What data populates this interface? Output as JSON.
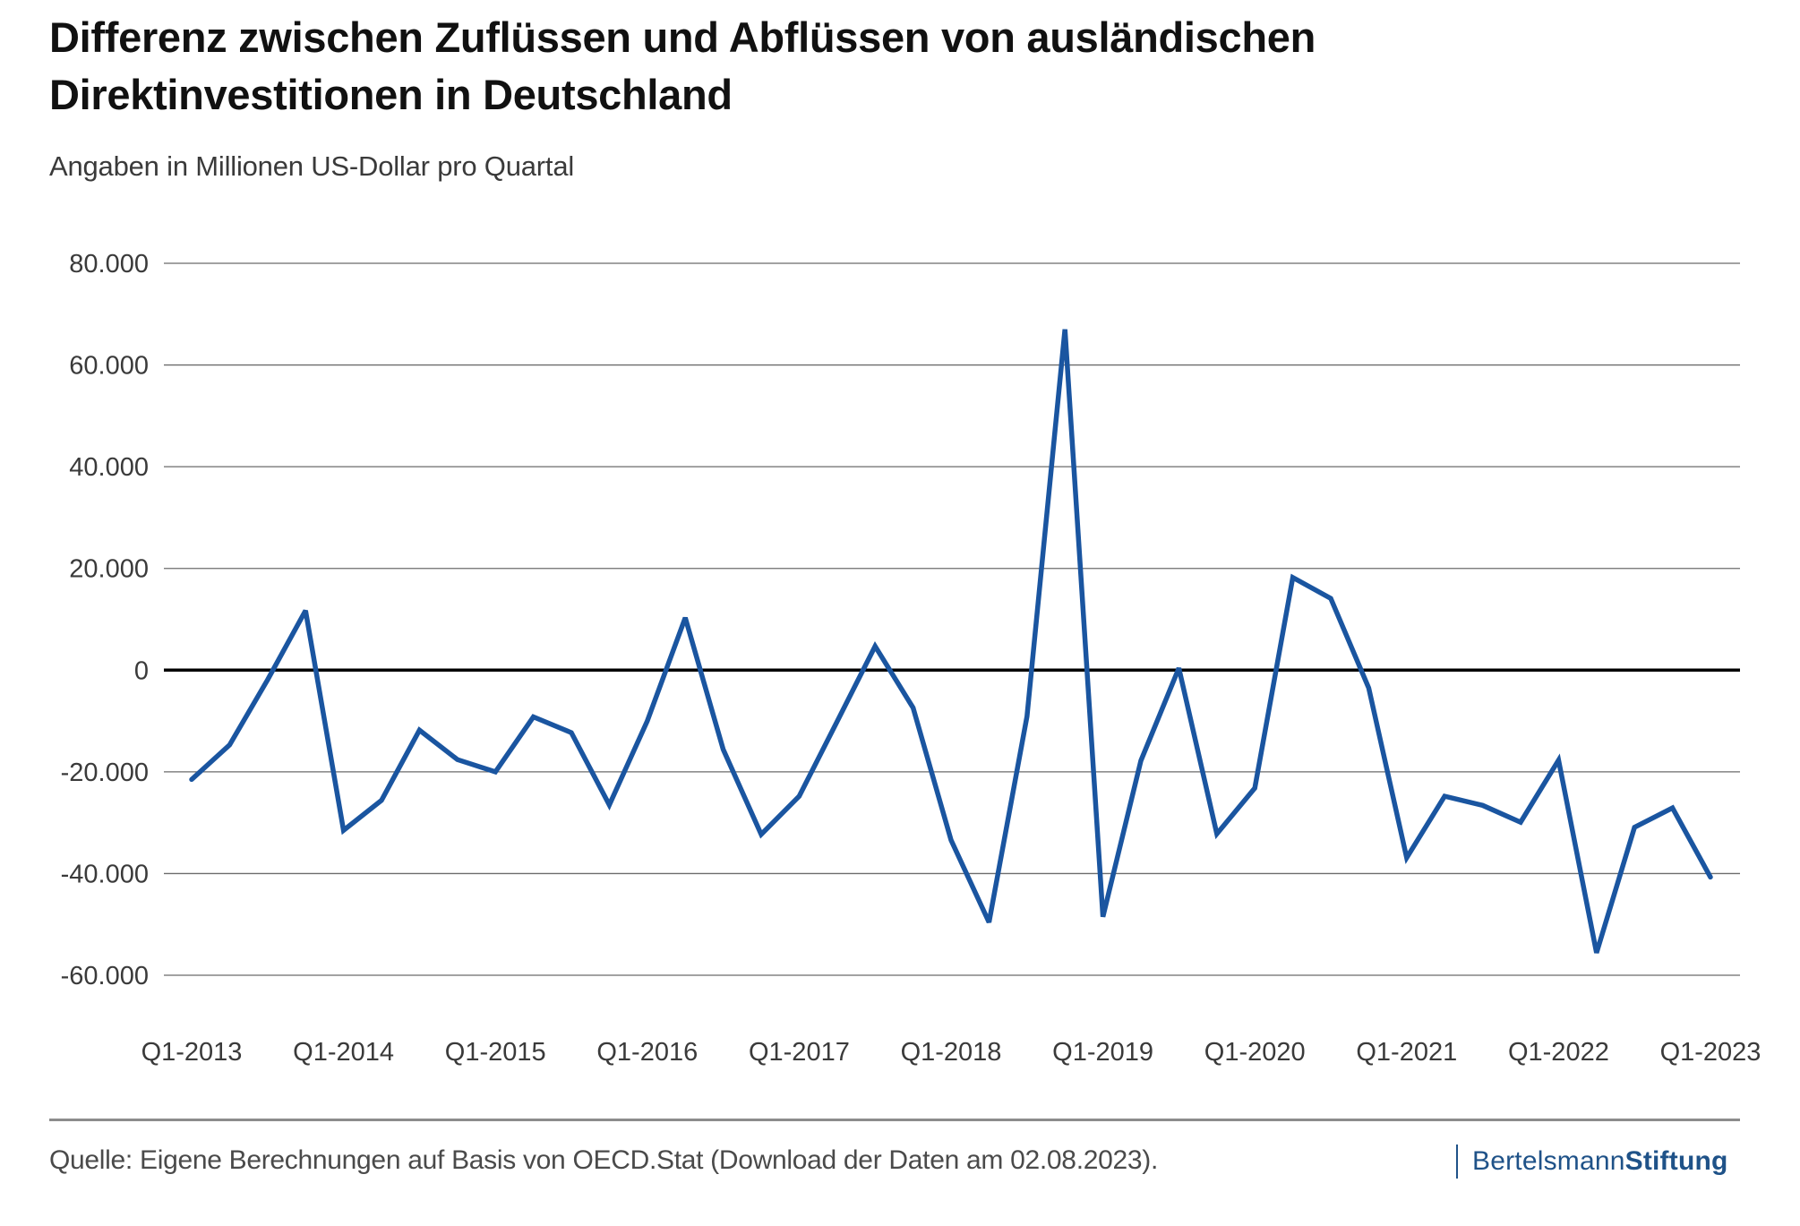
{
  "header": {
    "title_line1": "Differenz zwischen Zuflüssen und Abflüssen von ausländischen",
    "title_line2": "Direktinvestitionen in Deutschland",
    "subtitle": "Angaben in Millionen US-Dollar pro Quartal"
  },
  "footer": {
    "source": "Quelle: Eigene Berechnungen auf Basis von OECD.Stat (Download der Daten am 02.08.2023).",
    "logo_regular": "Bertelsmann",
    "logo_bold": "Stiftung",
    "logo_color": "#1f5288"
  },
  "chart_data": {
    "type": "line",
    "title": "Differenz zwischen Zuflüssen und Abflüssen von ausländischen Direktinvestitionen in Deutschland",
    "subtitle": "Angaben in Millionen US-Dollar pro Quartal",
    "xlabel": "",
    "ylabel": "",
    "ylim": [
      -60000,
      80000
    ],
    "yticks": [
      80000,
      60000,
      40000,
      20000,
      0,
      -20000,
      -40000,
      -60000
    ],
    "ytick_labels": [
      "80.000",
      "60.000",
      "40.000",
      "20.000",
      "0",
      "-20.000",
      "-40.000",
      "-60.000"
    ],
    "xtick_labels": [
      "Q1-2013",
      "Q1-2014",
      "Q1-2015",
      "Q1-2016",
      "Q1-2017",
      "Q1-2018",
      "Q1-2019",
      "Q1-2020",
      "Q1-2021",
      "Q1-2022",
      "Q1-2023"
    ],
    "grid": true,
    "legend": "none",
    "line_color": "#1a55a0",
    "zero_line_color": "#000000",
    "x": [
      "Q1-2013",
      "Q2-2013",
      "Q3-2013",
      "Q4-2013",
      "Q1-2014",
      "Q2-2014",
      "Q3-2014",
      "Q4-2014",
      "Q1-2015",
      "Q2-2015",
      "Q3-2015",
      "Q4-2015",
      "Q1-2016",
      "Q2-2016",
      "Q3-2016",
      "Q4-2016",
      "Q1-2017",
      "Q2-2017",
      "Q3-2017",
      "Q4-2017",
      "Q1-2018",
      "Q2-2018",
      "Q3-2018",
      "Q4-2018",
      "Q1-2019",
      "Q2-2019",
      "Q3-2019",
      "Q4-2019",
      "Q1-2020",
      "Q2-2020",
      "Q3-2020",
      "Q4-2020",
      "Q1-2021",
      "Q2-2021",
      "Q3-2021",
      "Q4-2021",
      "Q1-2022",
      "Q2-2022",
      "Q3-2022",
      "Q4-2022",
      "Q1-2023"
    ],
    "series": [
      {
        "name": "Differenz Zuflüsse minus Abflüsse",
        "values": [
          -21500,
          -14700,
          -1900,
          11700,
          -31500,
          -25600,
          -11800,
          -17600,
          -20000,
          -9200,
          -12300,
          -26500,
          -10000,
          10300,
          -15600,
          -32300,
          -24800,
          -10100,
          4700,
          -7400,
          -33400,
          -49600,
          -9100,
          67000,
          -48500,
          -17800,
          400,
          -32200,
          -23200,
          18200,
          14100,
          -3500,
          -36900,
          -24800,
          -26600,
          -29900,
          -17700,
          -55600,
          -30900,
          -27100,
          -40700
        ]
      }
    ]
  }
}
